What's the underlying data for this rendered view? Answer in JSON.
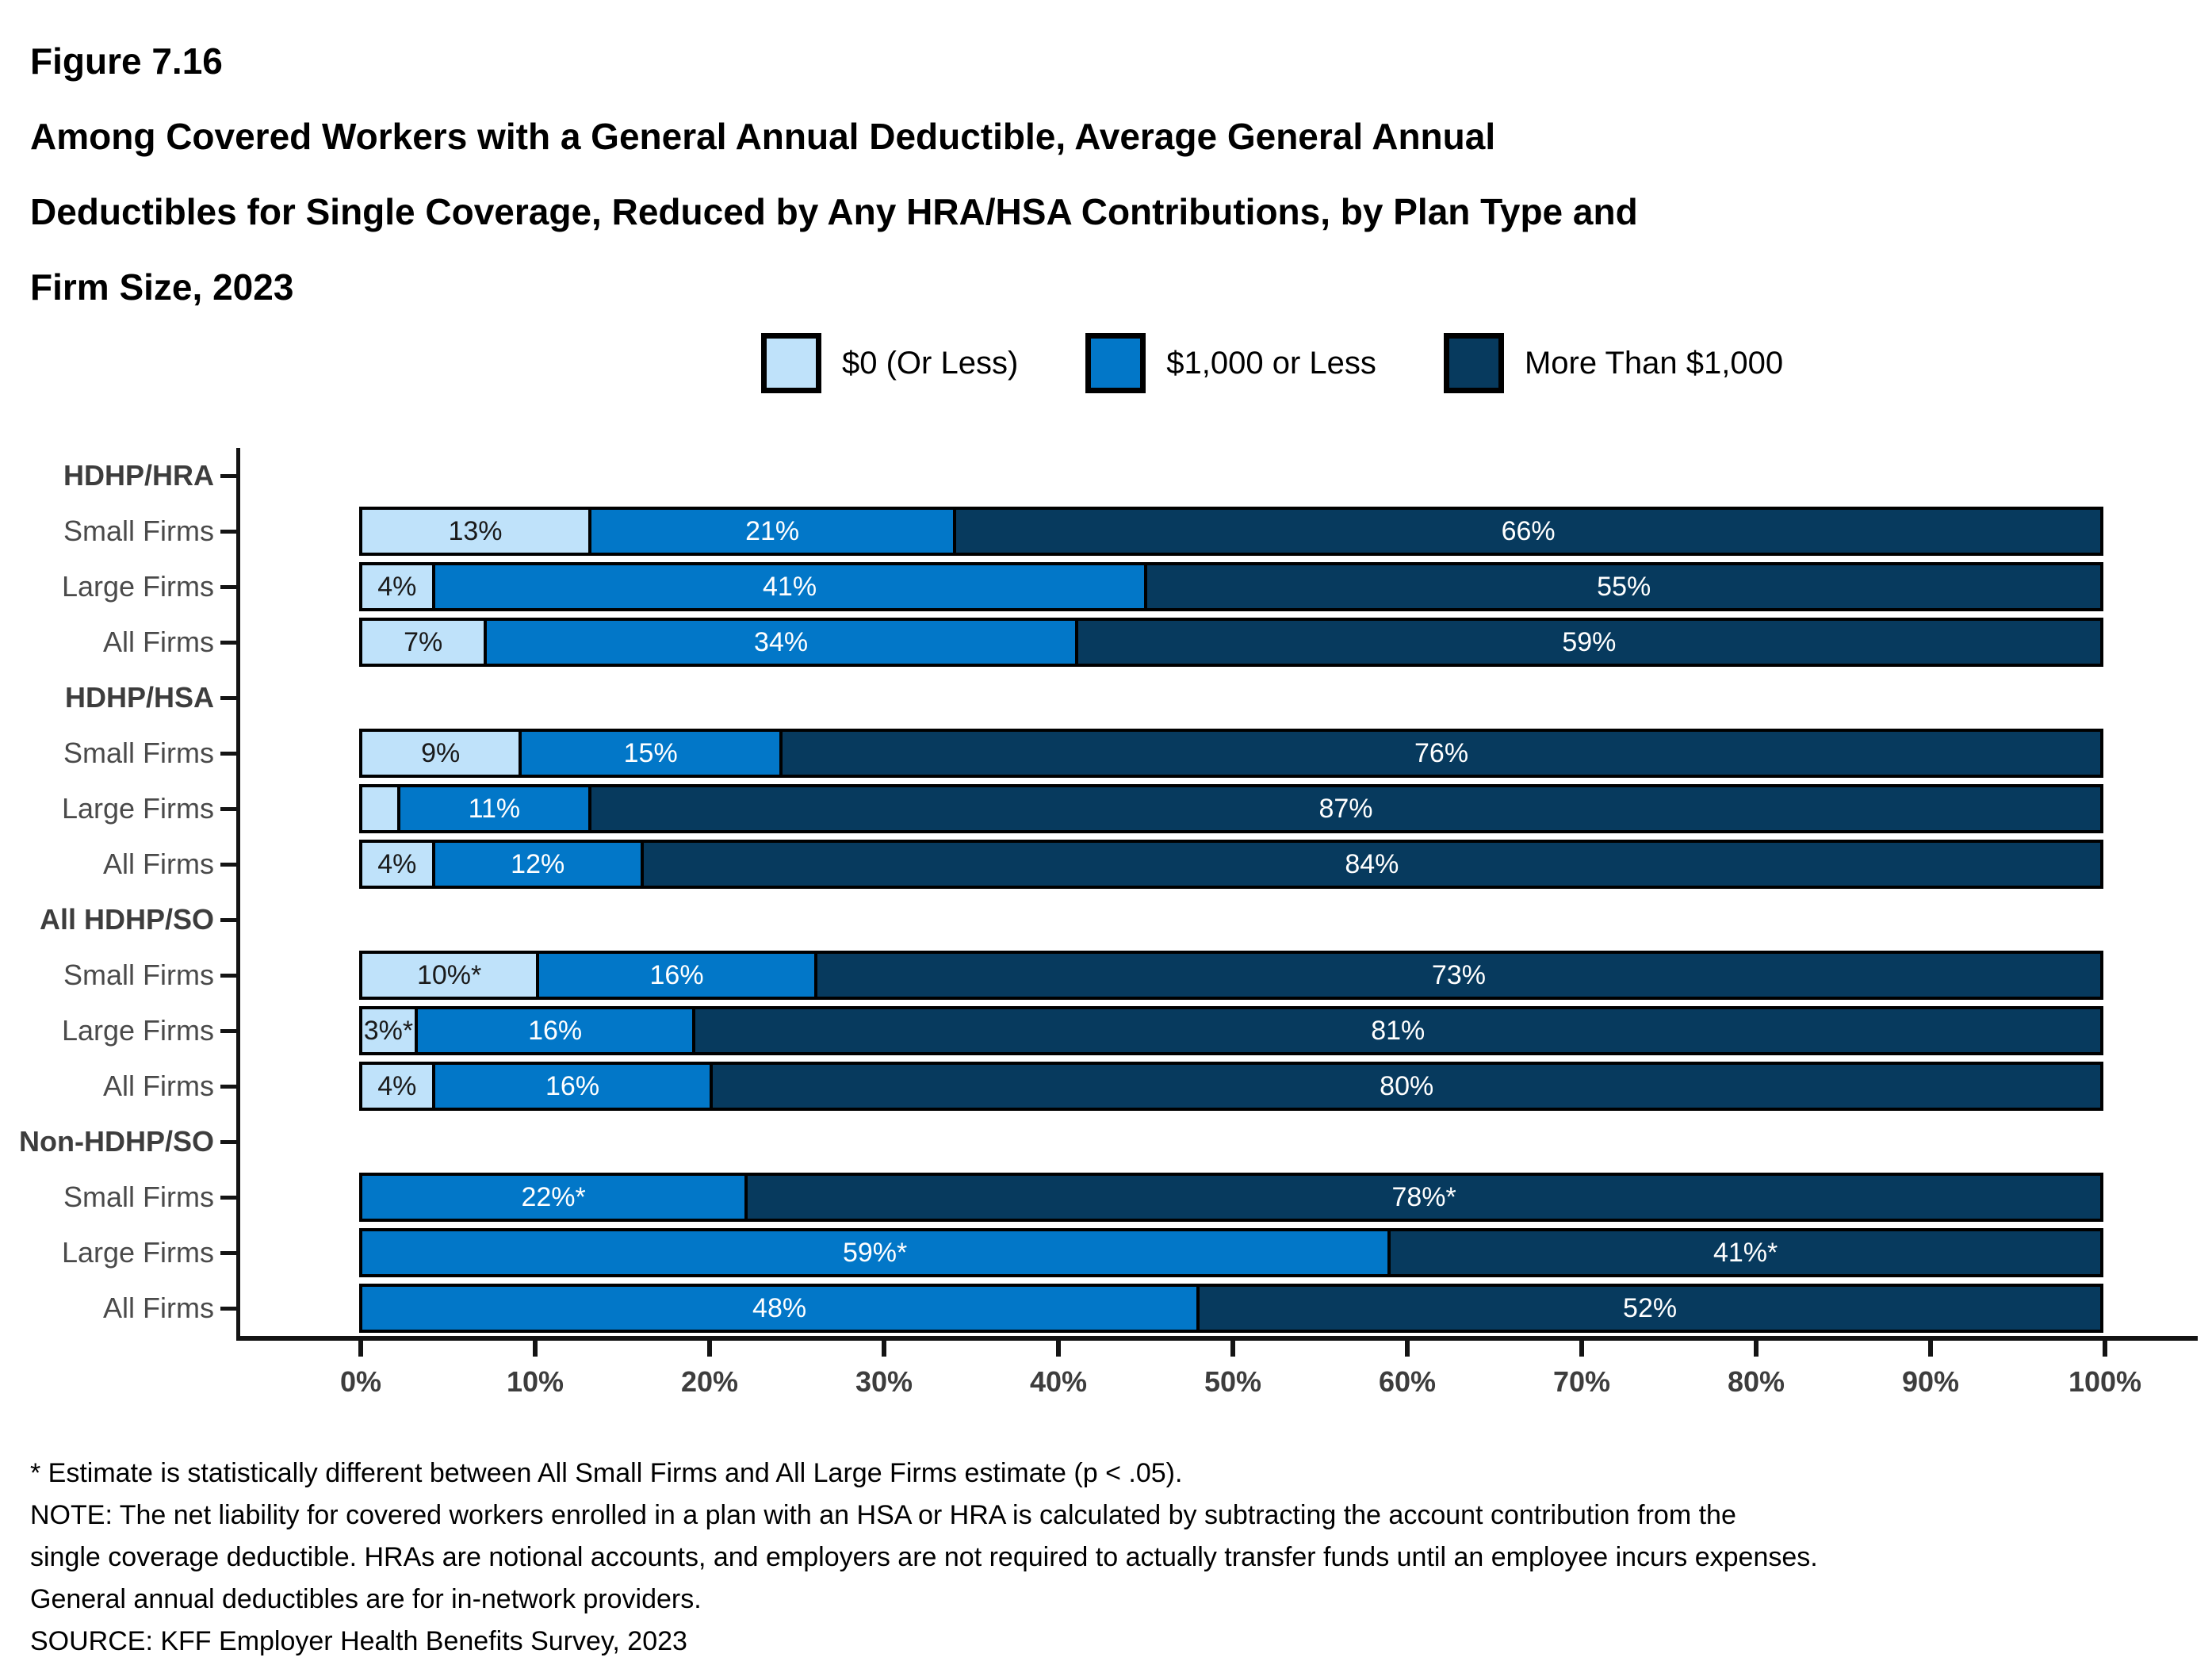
{
  "figure_label": "Figure 7.16",
  "title_lines": [
    "Among Covered Workers with a General Annual Deductible, Average General Annual",
    "Deductibles for Single Coverage, Reduced by Any HRA/HSA Contributions, by Plan Type and",
    "Firm Size, 2023"
  ],
  "colors": {
    "light": "#BFE2FA",
    "mid": "#0277C8",
    "dark": "#073A5E"
  },
  "legend": [
    {
      "label": "$0 (Or Less)",
      "color": "light"
    },
    {
      "label": "$1,000 or Less",
      "color": "mid"
    },
    {
      "label": "More Than $1,000",
      "color": "dark"
    }
  ],
  "chart_data": {
    "type": "bar",
    "stacked": true,
    "orientation": "horizontal",
    "series_names": [
      "$0 (Or Less)",
      "$1,000 or Less",
      "More Than $1,000"
    ],
    "x_axis": {
      "range": [
        0,
        100
      ],
      "ticks": [
        "0%",
        "10%",
        "20%",
        "30%",
        "40%",
        "50%",
        "60%",
        "70%",
        "80%",
        "90%",
        "100%"
      ]
    },
    "groups": [
      {
        "label": "HDHP/HRA",
        "rows": [
          {
            "label": "Small Firms",
            "values": [
              13,
              21,
              66
            ],
            "labels": [
              "13%",
              "21%",
              "66%"
            ]
          },
          {
            "label": "Large Firms",
            "values": [
              4,
              41,
              55
            ],
            "labels": [
              "4%",
              "41%",
              "55%"
            ]
          },
          {
            "label": "All Firms",
            "values": [
              7,
              34,
              59
            ],
            "labels": [
              "7%",
              "34%",
              "59%"
            ]
          }
        ]
      },
      {
        "label": "HDHP/HSA",
        "rows": [
          {
            "label": "Small Firms",
            "values": [
              9,
              15,
              76
            ],
            "labels": [
              "9%",
              "15%",
              "76%"
            ]
          },
          {
            "label": "Large Firms",
            "values": [
              2,
              11,
              87
            ],
            "labels": [
              "",
              "11%",
              "87%"
            ]
          },
          {
            "label": "All Firms",
            "values": [
              4,
              12,
              84
            ],
            "labels": [
              "4%",
              "12%",
              "84%"
            ]
          }
        ]
      },
      {
        "label": "All HDHP/SO",
        "rows": [
          {
            "label": "Small Firms",
            "values": [
              10,
              16,
              73
            ],
            "labels": [
              "10%*",
              "16%",
              "73%"
            ]
          },
          {
            "label": "Large Firms",
            "values": [
              3,
              16,
              81
            ],
            "labels": [
              "3%*",
              "16%",
              "81%"
            ]
          },
          {
            "label": "All Firms",
            "values": [
              4,
              16,
              80
            ],
            "labels": [
              "4%",
              "16%",
              "80%"
            ]
          }
        ]
      },
      {
        "label": "Non-HDHP/SO",
        "rows": [
          {
            "label": "Small Firms",
            "values": [
              0,
              22,
              78
            ],
            "labels": [
              "",
              "22%*",
              "78%*"
            ]
          },
          {
            "label": "Large Firms",
            "values": [
              0,
              59,
              41
            ],
            "labels": [
              "",
              "59%*",
              "41%*"
            ]
          },
          {
            "label": "All Firms",
            "values": [
              0,
              48,
              52
            ],
            "labels": [
              "",
              "48%",
              "52%"
            ]
          }
        ]
      }
    ]
  },
  "footnotes": [
    "* Estimate is statistically different between All Small Firms and All Large Firms estimate (p < .05).",
    "NOTE: The net liability for covered workers enrolled in a plan with an HSA or HRA is calculated by subtracting the account contribution from the",
    "single coverage deductible. HRAs are notional accounts, and employers are not required to actually transfer funds until an employee incurs expenses.",
    "General annual deductibles are for in-network providers.",
    "SOURCE: KFF Employer Health Benefits Survey, 2023"
  ]
}
